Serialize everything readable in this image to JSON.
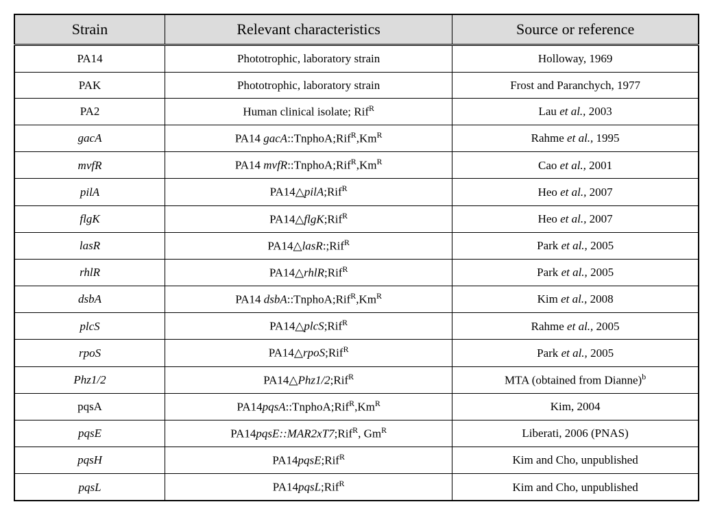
{
  "table": {
    "columns": [
      "Strain",
      "Relevant characteristics",
      "Source or reference"
    ],
    "header_bg": "#dcdcdc",
    "header_fontsize": 22,
    "cell_fontsize": 17,
    "border_color": "#000000",
    "rows": [
      {
        "strain": {
          "html": "PA14"
        },
        "char": {
          "html": "Phototrophic, laboratory strain"
        },
        "src": {
          "html": "Holloway, 1969"
        }
      },
      {
        "strain": {
          "html": "PAK"
        },
        "char": {
          "html": "Phototrophic, laboratory strain"
        },
        "src": {
          "html": "Frost and Paranchych, 1977"
        }
      },
      {
        "strain": {
          "html": "PA2"
        },
        "char": {
          "html": "Human clinical isolate; Rif<sup>R</sup>"
        },
        "src": {
          "html": "Lau <span class=\"italic\">et al.,</span> 2003"
        }
      },
      {
        "strain": {
          "html": "<span class=\"italic\">gacA</span>"
        },
        "char": {
          "html": "PA14 <span class=\"italic\">gacA</span>::TnphoA;Rif<sup>R</sup>,Km<sup>R</sup>"
        },
        "src": {
          "html": "Rahme <span class=\"italic\">et al.,</span> 1995"
        }
      },
      {
        "strain": {
          "html": "<span class=\"italic\">mvfR</span>"
        },
        "char": {
          "html": "PA14 <span class=\"italic\">mvfR</span>::TnphoA;Rif<sup>R</sup>,Km<sup>R</sup>"
        },
        "src": {
          "html": "Cao <span class=\"italic\">et al.,</span> 2001"
        }
      },
      {
        "strain": {
          "html": "<span class=\"italic\">pilA</span>"
        },
        "char": {
          "html": "PA14△<span class=\"italic\">pilA</span>;Rif<sup>R</sup>"
        },
        "src": {
          "html": "Heo <span class=\"italic\">et al.,</span> 2007"
        }
      },
      {
        "strain": {
          "html": "<span class=\"italic\">flgK</span>"
        },
        "char": {
          "html": "PA14△<span class=\"italic\">flgK</span>;Rif<sup>R</sup>"
        },
        "src": {
          "html": "Heo <span class=\"italic\">et al.,</span> 2007"
        }
      },
      {
        "strain": {
          "html": "<span class=\"italic\">lasR</span>"
        },
        "char": {
          "html": "PA14△<span class=\"italic\">lasR</span>:;Rif<sup>R</sup>"
        },
        "src": {
          "html": "Park <span class=\"italic\">et al.,</span> 2005"
        }
      },
      {
        "strain": {
          "html": "<span class=\"italic\">rhlR</span>"
        },
        "char": {
          "html": "PA14△<span class=\"italic\">rhlR</span>;Rif<sup>R</sup>"
        },
        "src": {
          "html": "Park <span class=\"italic\">et al.,</span> 2005"
        }
      },
      {
        "strain": {
          "html": "<span class=\"italic\">dsbA</span>"
        },
        "char": {
          "html": "PA14 <span class=\"italic\">dsbA</span>::TnphoA;Rif<sup>R</sup>,Km<sup>R</sup>"
        },
        "src": {
          "html": "Kim <span class=\"italic\">et al.,</span> 2008"
        }
      },
      {
        "strain": {
          "html": "<span class=\"italic\">plcS</span>"
        },
        "char": {
          "html": "PA14△<span class=\"italic\">plcS</span>;Rif<sup>R</sup>"
        },
        "src": {
          "html": "Rahme <span class=\"italic\">et al.,</span> 2005"
        }
      },
      {
        "strain": {
          "html": "<span class=\"italic\">rpoS</span>"
        },
        "char": {
          "html": "PA14△<span class=\"italic\">rpoS</span>;Rif<sup>R</sup>"
        },
        "src": {
          "html": "Park <span class=\"italic\">et al.,</span> 2005"
        }
      },
      {
        "strain": {
          "html": "<span class=\"italic\">Phz1/2</span>"
        },
        "char": {
          "html": "PA14△<span class=\"italic\">Phz1/2</span>;Rif<sup>R</sup>"
        },
        "src": {
          "html": "MTA (obtained from Dianne)<sup>b</sup>"
        }
      },
      {
        "strain": {
          "html": "pqsA"
        },
        "char": {
          "html": "PA14<span class=\"italic\">pqsA</span>::TnphoA;Rif<sup>R</sup>,Km<sup>R</sup>"
        },
        "src": {
          "html": "Kim, 2004"
        }
      },
      {
        "strain": {
          "html": "<span class=\"italic\">pqsE</span>"
        },
        "char": {
          "html": "PA14<span class=\"italic\">pqsE::MAR2xT7</span>;Rif<sup>R</sup>, Gm<sup>R</sup>"
        },
        "src": {
          "html": "Liberati, 2006 (PNAS)"
        }
      },
      {
        "strain": {
          "html": "<span class=\"italic\">pqsH</span>"
        },
        "char": {
          "html": "PA14<span class=\"italic\">pqsE</span>;Rif<sup>R</sup>"
        },
        "src": {
          "html": "Kim and Cho, unpublished"
        }
      },
      {
        "strain": {
          "html": "<span class=\"italic\">pqsL</span>"
        },
        "char": {
          "html": "PA14<span class=\"italic\">pqsL</span>;Rif<sup>R</sup>"
        },
        "src": {
          "html": "Kim and Cho, unpublished"
        }
      }
    ]
  }
}
